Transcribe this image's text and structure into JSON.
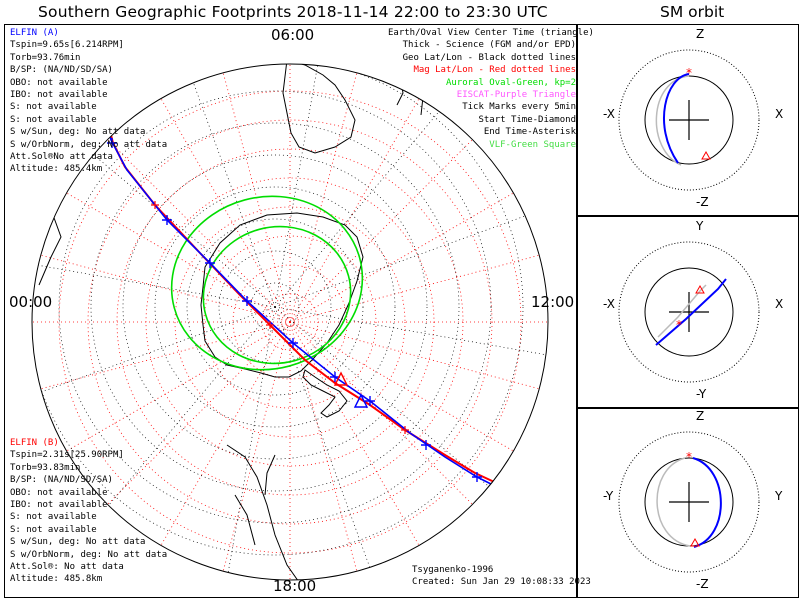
{
  "title": "Southern Geographic Footprints 2018-11-14 22:00 to 23:30 UTC",
  "orbit_title": "SM orbit",
  "elfin_a": {
    "lines": [
      "ELFIN (A)",
      "Tspin=9.65s[6.214RPM]",
      "Torb=93.76min",
      "B/SP: (NA/ND/SD/SA)",
      "OBO: not available",
      "IBO: not available",
      "S: not available",
      "S: not available",
      "S w/Sun, deg: No att data",
      "S w/OrbNorm, deg: No att data",
      "Att.Sol®No att data",
      "Altitude: 485.4km"
    ],
    "color": "#0000ff"
  },
  "elfin_b": {
    "lines": [
      "ELFIN (B)",
      "Tspin=2.31s[25.90RPM]",
      "Torb=93.83min",
      "B/SP: (NA/ND/SD/SA)",
      "OBO: not available",
      "IBO: not available",
      "S: not available",
      "S: not available",
      "S w/Sun, deg: No att data",
      "S w/OrbNorm, deg: No att data",
      "Att.Sol®: No att data",
      "Altitude: 485.8km"
    ],
    "color": "#ff0000"
  },
  "legend": [
    {
      "text": "Earth/Oval View Center Time (triangle)",
      "color": "#000000"
    },
    {
      "text": "Thick - Science (FGM and/or EPD)",
      "color": "#000000"
    },
    {
      "text": "Geo Lat/Lon - Black dotted lines",
      "color": "#000000"
    },
    {
      "text": "Mag Lat/Lon - Red dotted lines",
      "color": "#ff0000"
    },
    {
      "text": "Auroral Oval-Green, kp=2",
      "color": "#00dd00"
    },
    {
      "text": "EISCAT-Purple Triangle",
      "color": "#ff55ff"
    },
    {
      "text": "Tick Marks every 5min",
      "color": "#000000"
    },
    {
      "text": "Start Time-Diamond",
      "color": "#000000"
    },
    {
      "text": "End Time-Asterisk",
      "color": "#000000"
    },
    {
      "text": "VLF-Green Square",
      "color": "#44dd44"
    }
  ],
  "credits": [
    "Tsyganenko-1996",
    "Created: Sun Jan 29 10:08:33 2023"
  ],
  "hour_labels": {
    "top": "06:00",
    "left": "00:00",
    "right": "12:00",
    "bottom": "18:00"
  },
  "orbit_panels": [
    {
      "top": "Z",
      "bottom": "-Z",
      "left": "-X",
      "right": "X"
    },
    {
      "top": "Y",
      "bottom": "-Y",
      "left": "-X",
      "right": "X"
    },
    {
      "top": "Z",
      "bottom": "-Z",
      "left": "-Y",
      "right": "Y"
    }
  ],
  "chart_data": {
    "type": "polar map",
    "projection": "south polar stereographic",
    "grid": true,
    "series": [
      {
        "name": "ELFIN (A)",
        "color": "#0000ff"
      },
      {
        "name": "ELFIN (B)",
        "color": "#ff0000"
      }
    ],
    "time_range": [
      "2018-11-14 22:00",
      "2018-11-14 23:30"
    ]
  }
}
